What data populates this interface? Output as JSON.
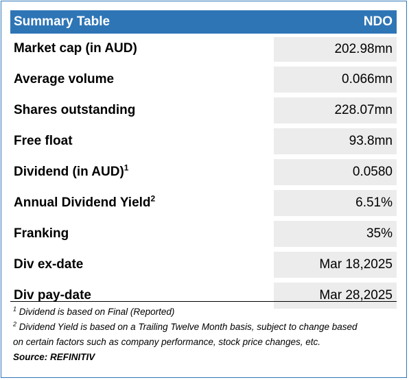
{
  "table": {
    "header": {
      "title": "Summary Table",
      "ticker": "NDO"
    },
    "rows": [
      {
        "label": "Market cap (in AUD)",
        "sup": "",
        "value": "202.98mn"
      },
      {
        "label": "Average volume",
        "sup": "",
        "value": "0.066mn"
      },
      {
        "label": "Shares outstanding",
        "sup": "",
        "value": "228.07mn"
      },
      {
        "label": "Free float",
        "sup": "",
        "value": "93.8mn"
      },
      {
        "label": "Dividend (in AUD)",
        "sup": "1",
        "value": "0.0580"
      },
      {
        "label": "Annual Dividend Yield",
        "sup": "2",
        "value": "6.51%"
      },
      {
        "label": "Franking",
        "sup": "",
        "value": "35%"
      },
      {
        "label": "Div ex-date",
        "sup": "",
        "value": "Mar 18,2025"
      },
      {
        "label": "Div pay-date",
        "sup": "",
        "value": "Mar 28,2025"
      }
    ]
  },
  "footnotes": {
    "note1_sup": "1",
    "note1_text": " Dividend is based on Final (Reported)",
    "note2_sup": "2",
    "note2_text_line1": " Dividend Yield is based on a Trailing Twelve Month basis, subject to change based",
    "note2_text_line2": "on certain factors such as company performance, stock price changes, etc.",
    "source": "Source: REFINITIV"
  },
  "colors": {
    "header_bg": "#2e75b6",
    "value_bg": "#ececec"
  }
}
